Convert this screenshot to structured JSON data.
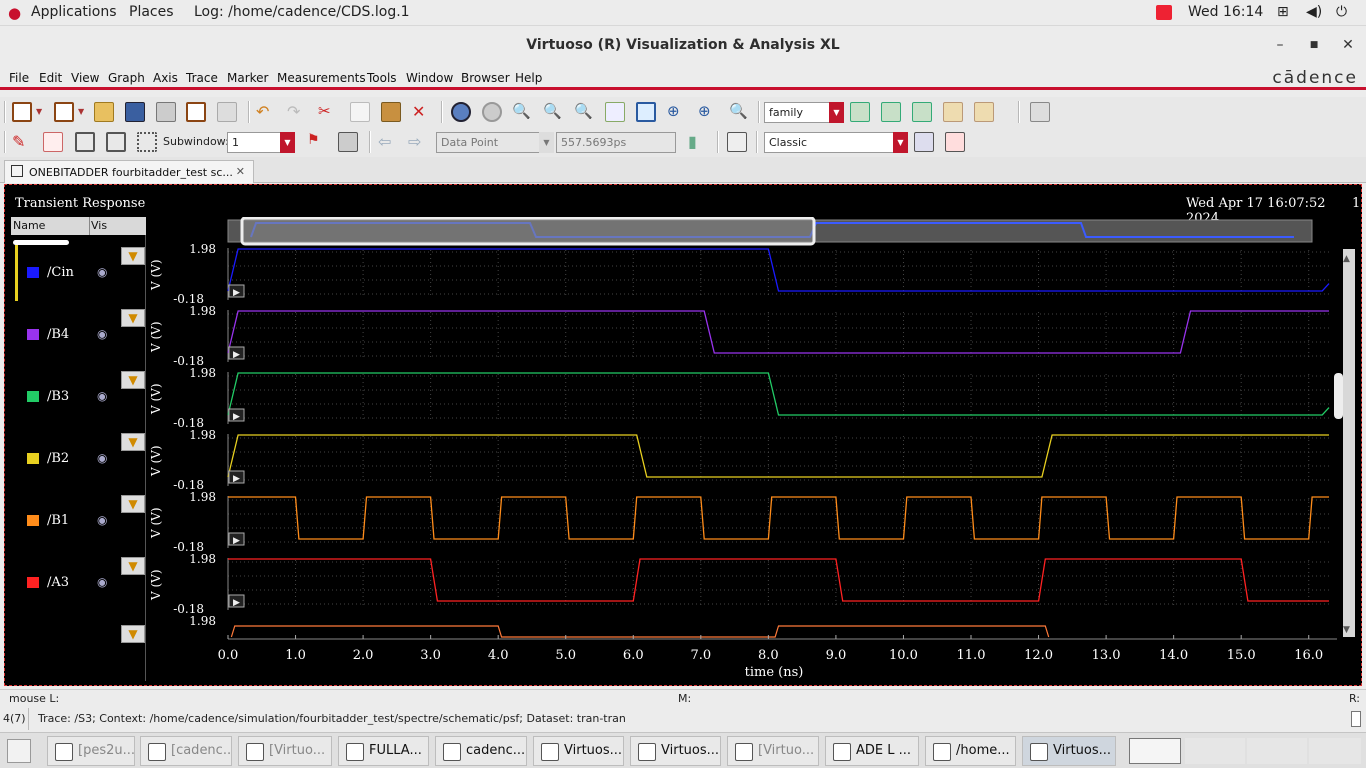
{
  "system_bar": {
    "applications": "Applications",
    "places": "Places",
    "log_title": "Log: /home/cadence/CDS.log.1",
    "clock": "Wed 16:14"
  },
  "window": {
    "title": "Virtuoso (R) Visualization & Analysis XL",
    "minimize": "–",
    "maximize": "■",
    "close": "✕"
  },
  "menu": {
    "items": [
      "File",
      "Edit",
      "View",
      "Graph",
      "Axis",
      "Trace",
      "Marker",
      "Measurements",
      "Tools",
      "Window",
      "Browser",
      "Help"
    ],
    "brand": "cādence"
  },
  "toolbar1": {
    "family_combo": "family"
  },
  "toolbar2": {
    "subwindow_label": "Subwindow:",
    "subwindow_value": "1",
    "data_point_combo": "Data Point",
    "data_point_value": "557.5693ps",
    "style_combo": "Classic"
  },
  "tab": {
    "label": "ONEBITADDER fourbitadder_test sc...",
    "close": "✕"
  },
  "plot": {
    "title": "Transient Response",
    "timestamp": "Wed Apr 17 16:07:52 2024",
    "page_number": "1",
    "legend_headers": {
      "name": "Name",
      "vis": "Vis"
    }
  },
  "chart_data": {
    "type": "line",
    "xlabel": "time (ns)",
    "ylabel": "V (V)",
    "xlim": [
      0.0,
      16.3
    ],
    "ylim": [
      -0.18,
      1.98
    ],
    "x_ticks": [
      "0.0",
      "1.0",
      "2.0",
      "3.0",
      "4.0",
      "5.0",
      "6.0",
      "7.0",
      "8.0",
      "9.0",
      "10.0",
      "11.0",
      "12.0",
      "13.0",
      "14.0",
      "15.0",
      "16.0"
    ],
    "y_ticks": [
      "1.98",
      "-0.18"
    ],
    "series": [
      {
        "name": "/Cin",
        "color": "#1a1aff",
        "x": [
          0.0,
          0.15,
          8.0,
          8.15,
          16.2,
          16.3
        ],
        "y": [
          -0.18,
          1.98,
          1.98,
          -0.18,
          -0.18,
          0.2
        ]
      },
      {
        "name": "/B4",
        "color": "#9933ee",
        "x": [
          0.0,
          0.15,
          7.05,
          7.2,
          14.1,
          14.25,
          16.3
        ],
        "y": [
          -0.18,
          1.98,
          1.98,
          -0.18,
          -0.18,
          1.98,
          1.98
        ]
      },
      {
        "name": "/B3",
        "color": "#22cc66",
        "x": [
          0.0,
          0.15,
          8.0,
          8.15,
          16.2,
          16.3
        ],
        "y": [
          -0.18,
          1.98,
          1.98,
          -0.18,
          -0.18,
          0.2
        ]
      },
      {
        "name": "/B2",
        "color": "#e8d020",
        "x": [
          0.0,
          0.15,
          6.05,
          6.2,
          12.05,
          12.2,
          16.3
        ],
        "y": [
          -0.18,
          1.98,
          1.98,
          -0.18,
          -0.18,
          1.98,
          1.98
        ]
      },
      {
        "name": "/B1",
        "color": "#ff8c1a",
        "period_ns": 2.0,
        "x": [
          0,
          0.05,
          1.0,
          1.05,
          2.0,
          2.05,
          3.0,
          3.05,
          4.0,
          4.05,
          5.0,
          5.05,
          6.0,
          6.05,
          7.0,
          7.05,
          8.0,
          8.05,
          9.0,
          9.05,
          10.0,
          10.05,
          11.0,
          11.05,
          12.0,
          12.05,
          13.0,
          13.05,
          14.0,
          14.05,
          15.0,
          15.05,
          16.0,
          16.05,
          16.3
        ],
        "y": [
          1.98,
          1.98,
          1.98,
          -0.18,
          -0.18,
          1.98,
          1.98,
          -0.18,
          -0.18,
          1.98,
          1.98,
          -0.18,
          -0.18,
          1.98,
          1.98,
          -0.18,
          -0.18,
          1.98,
          1.98,
          -0.18,
          -0.18,
          1.98,
          1.98,
          -0.18,
          -0.18,
          1.98,
          1.98,
          -0.18,
          -0.18,
          1.98,
          1.98,
          -0.18,
          -0.18,
          1.98,
          1.98
        ]
      },
      {
        "name": "/A3",
        "color": "#ff2222",
        "x": [
          0.0,
          0.05,
          3.0,
          3.1,
          6.0,
          6.1,
          9.0,
          9.1,
          12.0,
          12.1,
          15.0,
          15.1,
          16.3
        ],
        "y": [
          1.98,
          1.98,
          1.98,
          -0.18,
          -0.18,
          1.98,
          1.98,
          -0.18,
          -0.18,
          1.98,
          1.98,
          -0.18,
          -0.18
        ]
      }
    ]
  },
  "status": {
    "mouse_l": "mouse L:",
    "mouse_m": "M:",
    "mouse_r": "R:",
    "count": "4(7)",
    "trace_info": "Trace: /S3; Context: /home/cadence/simulation/fourbitadder_test/spectre/schematic/psf; Dataset: tran-tran"
  },
  "taskbar": {
    "items": [
      {
        "label": "[pes2u...",
        "dim": true
      },
      {
        "label": "[cadenc...",
        "dim": true
      },
      {
        "label": "[Virtuo...",
        "dim": true
      },
      {
        "label": "FULLA...",
        "dim": false
      },
      {
        "label": "cadenc...",
        "dim": false
      },
      {
        "label": "Virtuos...",
        "dim": false
      },
      {
        "label": "Virtuos...",
        "dim": false
      },
      {
        "label": "[Virtuo...",
        "dim": true
      },
      {
        "label": "ADE L ...",
        "dim": false
      },
      {
        "label": "/home...",
        "dim": false
      },
      {
        "label": "Virtuos...",
        "dim": false
      }
    ]
  }
}
